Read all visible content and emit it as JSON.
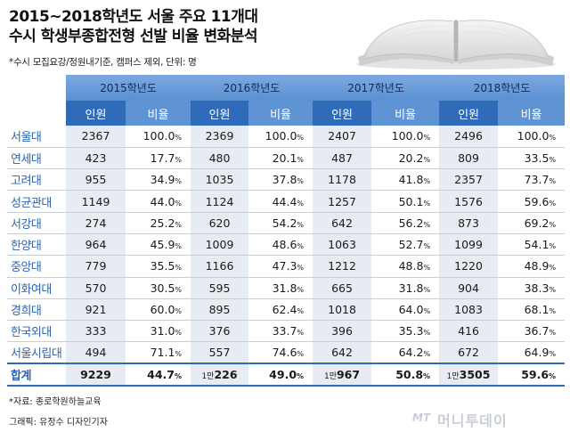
{
  "header": {
    "title_line1": "2015~2018학년도 서울 주요 11개대",
    "title_line2": "수시 학생부종합전형 선발 비율 변화분석",
    "note": "*수시 모집요강/정원내기준, 캠퍼스 제외, 단위: 명"
  },
  "table": {
    "years": [
      "2015학년도",
      "2016학년도",
      "2017학년도",
      "2018학년도"
    ],
    "col_count": "인원",
    "col_ratio": "비율",
    "pct_sign": "%",
    "rows": [
      {
        "name": "서울대",
        "v": [
          [
            "2367",
            "100.0"
          ],
          [
            "2369",
            "100.0"
          ],
          [
            "2407",
            "100.0"
          ],
          [
            "2496",
            "100.0"
          ]
        ]
      },
      {
        "name": "연세대",
        "v": [
          [
            "423",
            "17.7"
          ],
          [
            "480",
            "20.1"
          ],
          [
            "487",
            "20.2"
          ],
          [
            "809",
            "33.5"
          ]
        ]
      },
      {
        "name": "고려대",
        "v": [
          [
            "955",
            "34.9"
          ],
          [
            "1035",
            "37.8"
          ],
          [
            "1178",
            "41.8"
          ],
          [
            "2357",
            "73.7"
          ]
        ]
      },
      {
        "name": "성균관대",
        "v": [
          [
            "1149",
            "44.0"
          ],
          [
            "1124",
            "44.4"
          ],
          [
            "1257",
            "50.1"
          ],
          [
            "1576",
            "59.6"
          ]
        ]
      },
      {
        "name": "서강대",
        "v": [
          [
            "274",
            "25.2"
          ],
          [
            "620",
            "54.2"
          ],
          [
            "642",
            "56.2"
          ],
          [
            "873",
            "69.2"
          ]
        ]
      },
      {
        "name": "한양대",
        "v": [
          [
            "964",
            "45.9"
          ],
          [
            "1009",
            "48.6"
          ],
          [
            "1063",
            "52.7"
          ],
          [
            "1099",
            "54.1"
          ]
        ]
      },
      {
        "name": "중앙대",
        "v": [
          [
            "779",
            "35.5"
          ],
          [
            "1166",
            "47.3"
          ],
          [
            "1212",
            "48.8"
          ],
          [
            "1220",
            "48.9"
          ]
        ]
      },
      {
        "name": "이화여대",
        "v": [
          [
            "570",
            "30.5"
          ],
          [
            "595",
            "31.8"
          ],
          [
            "665",
            "31.8"
          ],
          [
            "904",
            "38.3"
          ]
        ]
      },
      {
        "name": "경희대",
        "v": [
          [
            "921",
            "60.0"
          ],
          [
            "895",
            "62.4"
          ],
          [
            "1018",
            "64.0"
          ],
          [
            "1083",
            "68.1"
          ]
        ]
      },
      {
        "name": "한국외대",
        "v": [
          [
            "333",
            "31.0"
          ],
          [
            "376",
            "33.7"
          ],
          [
            "396",
            "35.3"
          ],
          [
            "416",
            "36.7"
          ]
        ]
      },
      {
        "name": "서울시립대",
        "v": [
          [
            "494",
            "71.1"
          ],
          [
            "557",
            "74.6"
          ],
          [
            "642",
            "64.2"
          ],
          [
            "672",
            "64.9"
          ]
        ]
      }
    ],
    "total": {
      "name": "합계",
      "cells": [
        {
          "man": "",
          "rest": "9229",
          "ratio": "44.7"
        },
        {
          "man": "1만",
          "rest": "226",
          "ratio": "49.0"
        },
        {
          "man": "1만",
          "rest": "967",
          "ratio": "50.8"
        },
        {
          "man": "1만",
          "rest": "3505",
          "ratio": "59.6"
        }
      ]
    }
  },
  "footer": {
    "source": "*자료: 종로학원하늘교육",
    "credit": "그래픽: 유정수 디자인기자",
    "logo_mt": "MT",
    "logo_text": "머니투데이"
  },
  "colors": {
    "header_dark": "#2f6bb9",
    "header_light": "#5e93d4",
    "shade": "#e7ecf3",
    "name_blue": "#2a64b0"
  },
  "icons": [
    "open-book-illustration"
  ]
}
